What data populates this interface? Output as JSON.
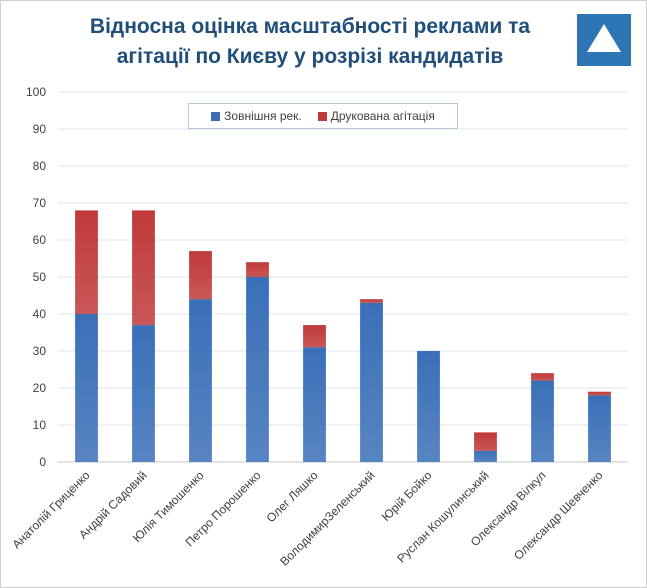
{
  "chart_data": {
    "type": "bar",
    "stacked": true,
    "title": "Відносна оцінка масштабності реклами та агітації по Києву у розрізі кандидатів",
    "title_lines": [
      "Відносна оцінка масштабності реклами та",
      "агітації по Києву у розрізі кандидатів"
    ],
    "categories": [
      "Анатолій Гриценко",
      "Андрій Садовий",
      "Юлія Тимошенко",
      "Петро Порошенко",
      "Олег Ляшко",
      "ВолодимирЗеленський",
      "Юрій Бойко",
      "Руслан Кошулинський",
      "Олександр Вілкул",
      "Олександр Шевченко"
    ],
    "series": [
      {
        "name": "Зовнішня рек.",
        "color": "#3a6fb8",
        "values": [
          40,
          37,
          44,
          50,
          31,
          43,
          30,
          3,
          22,
          18
        ]
      },
      {
        "name": "Друкована агітація",
        "color": "#c0393a",
        "values": [
          28,
          31,
          13,
          4,
          6,
          1,
          0,
          5,
          2,
          1
        ]
      }
    ],
    "ylim": [
      0,
      100
    ],
    "yticks": [
      "0",
      "10",
      "20",
      "30",
      "40",
      "50",
      "60",
      "70",
      "80",
      "90",
      "100"
    ],
    "grid": true,
    "legend_position": "top"
  },
  "logo": {
    "name": "triangle-logo-icon",
    "color": "#2e75b6"
  }
}
